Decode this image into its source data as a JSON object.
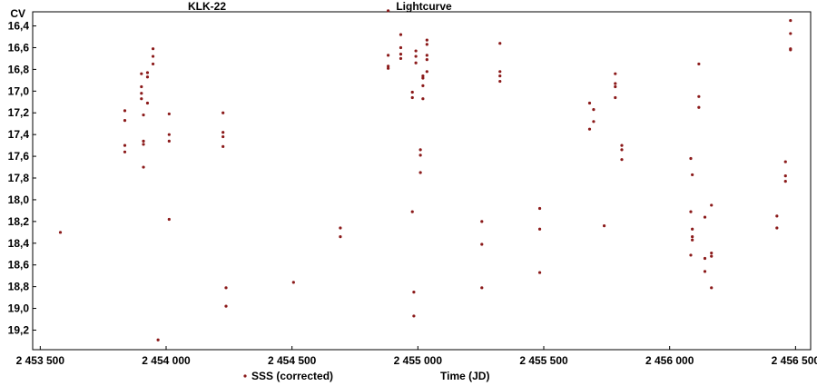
{
  "chart_data": {
    "type": "scatter",
    "title_left": "KLK-22",
    "title_center": "Lightcurve",
    "ylabel": "CV",
    "xlabel": "Time (JD)",
    "legend": "SSS (corrected)",
    "legend_position": "bottom-center",
    "marker_color": "#8B1A1A",
    "y_inverted": true,
    "xlim": [
      2453470,
      2456560
    ],
    "ylim": [
      16.27,
      19.38
    ],
    "x_ticks": [
      2453500,
      2454000,
      2454500,
      2455000,
      2455500,
      2456000,
      2456500
    ],
    "x_tick_labels": [
      "2 453 500",
      "2 454 000",
      "2 454 500",
      "2 455 000",
      "2 455 500",
      "2 456 000",
      "2 456 500"
    ],
    "y_ticks": [
      16.4,
      16.6,
      16.8,
      17.0,
      17.2,
      17.4,
      17.6,
      17.8,
      18.0,
      18.2,
      18.4,
      18.6,
      18.8,
      19.0,
      19.2
    ],
    "y_tick_labels": [
      "16,4",
      "16,6",
      "16,8",
      "17,0",
      "17,2",
      "17,4",
      "17,6",
      "17,8",
      "18,0",
      "18,2",
      "18,4",
      "18,6",
      "18,8",
      "19,0",
      "19,2"
    ],
    "grid": false,
    "series": [
      {
        "points": [
          [
            2453580,
            18.3
          ],
          [
            2453836,
            17.18
          ],
          [
            2453836,
            17.27
          ],
          [
            2453836,
            17.5
          ],
          [
            2453836,
            17.56
          ],
          [
            2453902,
            16.84
          ],
          [
            2453902,
            16.96
          ],
          [
            2453902,
            17.02
          ],
          [
            2453902,
            17.07
          ],
          [
            2453910,
            17.22
          ],
          [
            2453910,
            17.46
          ],
          [
            2453910,
            17.49
          ],
          [
            2453910,
            17.7
          ],
          [
            2453926,
            16.83
          ],
          [
            2453926,
            16.87
          ],
          [
            2453926,
            17.11
          ],
          [
            2453948,
            16.61
          ],
          [
            2453948,
            16.68
          ],
          [
            2453948,
            16.75
          ],
          [
            2453968,
            19.29
          ],
          [
            2454012,
            17.21
          ],
          [
            2454012,
            17.4
          ],
          [
            2454012,
            17.46
          ],
          [
            2454012,
            18.18
          ],
          [
            2454226,
            17.2
          ],
          [
            2454226,
            17.38
          ],
          [
            2454226,
            17.42
          ],
          [
            2454226,
            17.51
          ],
          [
            2454238,
            18.81
          ],
          [
            2454238,
            18.98
          ],
          [
            2454506,
            18.76
          ],
          [
            2454692,
            18.26
          ],
          [
            2454692,
            18.34
          ],
          [
            2454882,
            16.26
          ],
          [
            2454882,
            16.67
          ],
          [
            2454882,
            16.77
          ],
          [
            2454882,
            16.79
          ],
          [
            2454932,
            16.48
          ],
          [
            2454932,
            16.6
          ],
          [
            2454932,
            16.66
          ],
          [
            2454932,
            16.7
          ],
          [
            2454978,
            17.01
          ],
          [
            2454978,
            17.06
          ],
          [
            2454978,
            18.11
          ],
          [
            2454984,
            18.85
          ],
          [
            2454984,
            19.07
          ],
          [
            2454992,
            16.63
          ],
          [
            2454992,
            16.68
          ],
          [
            2454992,
            16.74
          ],
          [
            2455010,
            17.54
          ],
          [
            2455010,
            17.59
          ],
          [
            2455010,
            17.75
          ],
          [
            2455020,
            16.86
          ],
          [
            2455020,
            16.88
          ],
          [
            2455020,
            16.95
          ],
          [
            2455020,
            17.07
          ],
          [
            2455036,
            16.53
          ],
          [
            2455036,
            16.57
          ],
          [
            2455036,
            16.67
          ],
          [
            2455036,
            16.71
          ],
          [
            2455036,
            16.82
          ],
          [
            2455254,
            18.2
          ],
          [
            2455254,
            18.41
          ],
          [
            2455254,
            18.81
          ],
          [
            2455326,
            16.56
          ],
          [
            2455326,
            16.82
          ],
          [
            2455326,
            16.86
          ],
          [
            2455326,
            16.91
          ],
          [
            2455484,
            18.08
          ],
          [
            2455484,
            18.27
          ],
          [
            2455484,
            18.67
          ],
          [
            2455682,
            17.11
          ],
          [
            2455682,
            17.35
          ],
          [
            2455698,
            17.17
          ],
          [
            2455698,
            17.28
          ],
          [
            2455740,
            18.24
          ],
          [
            2455784,
            16.84
          ],
          [
            2455784,
            16.93
          ],
          [
            2455784,
            16.96
          ],
          [
            2455784,
            17.06
          ],
          [
            2455810,
            17.5
          ],
          [
            2455810,
            17.54
          ],
          [
            2455810,
            17.63
          ],
          [
            2456084,
            17.62
          ],
          [
            2456084,
            18.11
          ],
          [
            2456084,
            18.51
          ],
          [
            2456090,
            17.77
          ],
          [
            2456090,
            18.27
          ],
          [
            2456090,
            18.34
          ],
          [
            2456090,
            18.37
          ],
          [
            2456116,
            16.75
          ],
          [
            2456116,
            17.05
          ],
          [
            2456116,
            17.15
          ],
          [
            2456140,
            18.16
          ],
          [
            2456140,
            18.54
          ],
          [
            2456140,
            18.66
          ],
          [
            2456166,
            18.05
          ],
          [
            2456166,
            18.49
          ],
          [
            2456166,
            18.52
          ],
          [
            2456166,
            18.81
          ],
          [
            2456426,
            18.15
          ],
          [
            2456426,
            18.26
          ],
          [
            2456460,
            17.65
          ],
          [
            2456460,
            17.78
          ],
          [
            2456460,
            17.83
          ],
          [
            2456480,
            16.35
          ],
          [
            2456480,
            16.47
          ],
          [
            2456480,
            16.61
          ],
          [
            2456480,
            16.62
          ]
        ]
      }
    ]
  }
}
